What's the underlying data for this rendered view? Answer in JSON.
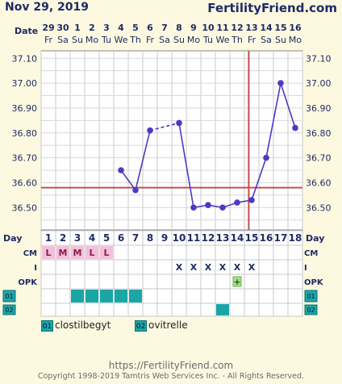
{
  "header": {
    "date": "Nov 29, 2019",
    "site": "FertilityFriend.com"
  },
  "chart_data": {
    "type": "line",
    "date_label": "Date",
    "dates": [
      "29",
      "30",
      "1",
      "2",
      "3",
      "4",
      "5",
      "6",
      "7",
      "8",
      "9",
      "10",
      "11",
      "12",
      "13",
      "14",
      "15",
      "16"
    ],
    "weekdays": [
      "Fr",
      "Sa",
      "Su",
      "Mo",
      "Tu",
      "We",
      "Th",
      "Fr",
      "Sa",
      "Su",
      "Mo",
      "Tu",
      "We",
      "Th",
      "Fr",
      "Sa",
      "Su",
      "Mo"
    ],
    "day_label": "Day",
    "days": [
      "1",
      "2",
      "3",
      "4",
      "5",
      "6",
      "7",
      "8",
      "9",
      "10",
      "11",
      "12",
      "13",
      "14",
      "15",
      "16",
      "17",
      "18"
    ],
    "y_ticks": [
      "37.10",
      "37.00",
      "36.90",
      "36.80",
      "36.70",
      "36.60",
      "36.50"
    ],
    "ylim": [
      36.41,
      37.13
    ],
    "temps": [
      null,
      null,
      null,
      null,
      null,
      36.65,
      36.57,
      36.81,
      null,
      36.84,
      36.5,
      36.51,
      36.5,
      36.52,
      36.53,
      36.7,
      37.0,
      36.82
    ],
    "coverline": 36.58,
    "ovulation_day": 15,
    "rows": {
      "cm": {
        "label": "CM",
        "values": [
          "L",
          "M",
          "M",
          "L",
          "L",
          "",
          "",
          "",
          "",
          "",
          "",
          "",
          "",
          "",
          "",
          "",
          "",
          ""
        ]
      },
      "i": {
        "label": "I",
        "values": [
          "",
          "",
          "",
          "",
          "",
          "",
          "",
          "",
          "",
          "X",
          "X",
          "X",
          "X",
          "X",
          "X",
          "",
          "",
          ""
        ]
      },
      "opk": {
        "label": "OPK",
        "values": [
          "",
          "",
          "",
          "",
          "",
          "",
          "",
          "",
          "",
          "",
          "",
          "",
          "",
          "+",
          "",
          "",
          "",
          ""
        ]
      },
      "med1": {
        "label": "01",
        "values": [
          0,
          0,
          1,
          1,
          1,
          1,
          1,
          0,
          0,
          0,
          0,
          0,
          0,
          0,
          0,
          0,
          0,
          0
        ]
      },
      "med2": {
        "label": "02",
        "values": [
          0,
          0,
          0,
          0,
          0,
          0,
          0,
          0,
          0,
          0,
          0,
          0,
          1,
          0,
          0,
          0,
          0,
          0
        ]
      }
    }
  },
  "legend": [
    {
      "code": "01",
      "name": "clostilbegyt"
    },
    {
      "code": "02",
      "name": "ovitrelle"
    }
  ],
  "footer": {
    "url": "https://FertilityFriend.com",
    "copyright": "Copyright 1998-2019 Tamtris Web Services Inc. - All Rights Reserved."
  },
  "colors": {
    "line": "#4a3bc4",
    "coverline": "#c0504d",
    "cm": "#f2c0d8",
    "med": "#1aa6a6",
    "opk": "#a8e08a"
  }
}
